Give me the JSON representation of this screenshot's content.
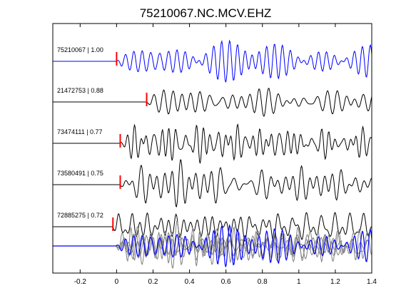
{
  "chart_data": {
    "type": "line",
    "title": "75210067.NC.MCV.EHZ",
    "xlabel": "",
    "ylabel": "",
    "xlim": [
      -0.35,
      1.4
    ],
    "xticks": [
      -0.2,
      0,
      0.2,
      0.4,
      0.6,
      0.8,
      1,
      1.2,
      1.4
    ],
    "xtick_labels": [
      "-0.2",
      "0",
      "0.2",
      "0.4",
      "0.6",
      "0.8",
      "1",
      "1.2",
      "1.4"
    ],
    "grid": false,
    "colors": {
      "primary": "#0000ff",
      "trace": "#000000",
      "pick": "#ff0000",
      "stack": "#808080"
    },
    "series": [
      {
        "label": "75210067 | 1.00",
        "pick_time": 0.0,
        "seed": 1,
        "freq": 19
      },
      {
        "label": "21472753 | 0.88",
        "pick_time": 0.165,
        "seed": 2,
        "freq": 17
      },
      {
        "label": "73474111 | 0.77",
        "pick_time": 0.02,
        "seed": 3,
        "freq": 22
      },
      {
        "label": "73580491 | 0.75",
        "pick_time": 0.02,
        "seed": 4,
        "freq": 21
      },
      {
        "label": "72885275 | 0.72",
        "pick_time": -0.02,
        "seed": 5,
        "freq": 18
      }
    ],
    "stack": {
      "onset_time": 0.0,
      "overlay_count": 5
    }
  }
}
